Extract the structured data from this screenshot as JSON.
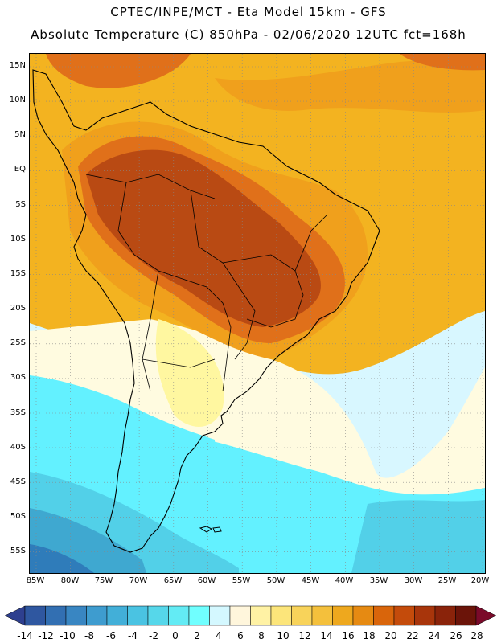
{
  "header": {
    "title_line1": "CPTEC/INPE/MCT -  Eta Model 15km - GFS",
    "title_line2": "Absolute Temperature (C) 850hPa - 02/06/2020 12UTC fct=168h"
  },
  "map": {
    "lat_labels": [
      "15N",
      "10N",
      "5N",
      "EQ",
      "5S",
      "10S",
      "15S",
      "20S",
      "25S",
      "30S",
      "35S",
      "40S",
      "45S",
      "50S",
      "55S"
    ],
    "lon_labels": [
      "85W",
      "80W",
      "75W",
      "70W",
      "65W",
      "60W",
      "55W",
      "50W",
      "45W",
      "40W",
      "35W",
      "30W",
      "25W",
      "20W"
    ],
    "colors": {
      "hot_core": "#b94a13",
      "hot": "#e0701a",
      "warm": "#f0a01c",
      "mild": "#f3b320",
      "pale_yellow": "#fff7a0",
      "cream": "#fffbe0",
      "light_cyan": "#d8f7ff",
      "cyan": "#63f1ff",
      "mid_cyan": "#52d0e8",
      "teal": "#3fa8d0",
      "dark_blue": "#2f7cba"
    }
  },
  "colorbar": {
    "labels": [
      "-14",
      "-12",
      "-10",
      "-8",
      "-6",
      "-4",
      "-2",
      "0",
      "2",
      "4",
      "6",
      "8",
      "10",
      "12",
      "14",
      "16",
      "18",
      "20",
      "22",
      "24",
      "26",
      "28"
    ],
    "colors": [
      "#2e3f8f",
      "#2f57a0",
      "#326fb2",
      "#3986c2",
      "#3e9ccf",
      "#42afd8",
      "#4ac3e2",
      "#56d7ea",
      "#63ebf4",
      "#70ffff",
      "#d4f8ff",
      "#fff6dc",
      "#fff2a4",
      "#fce57a",
      "#f8d35a",
      "#f4c03c",
      "#eea81e",
      "#e68a12",
      "#d9650b",
      "#c44b0b",
      "#a8350b",
      "#8a230a",
      "#6b1409",
      "#7b0a2a"
    ]
  }
}
